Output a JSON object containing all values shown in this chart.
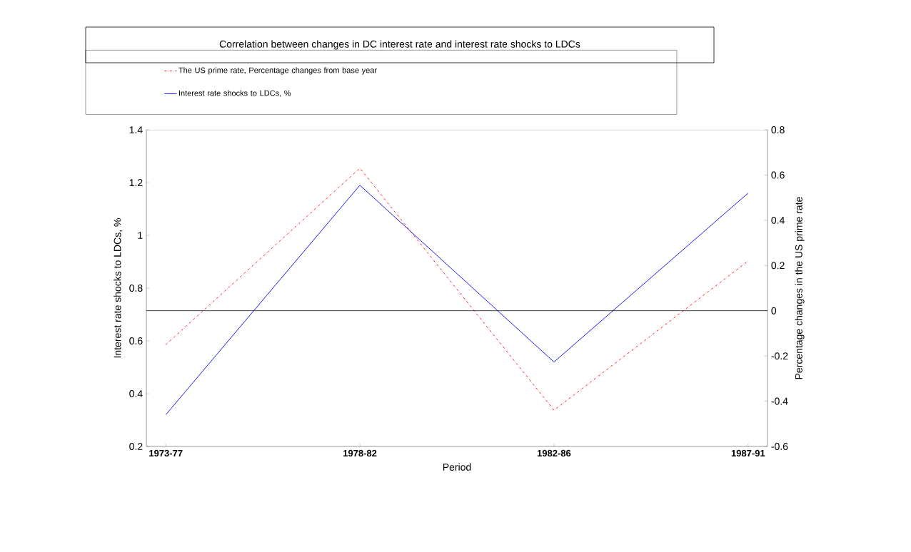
{
  "chart_data": {
    "type": "line",
    "title": "Correlation between changes in DC interest rate and interest rate shocks to LDCs",
    "categories": [
      "1973-77",
      "1978-82",
      "1982-86",
      "1987-91"
    ],
    "series": [
      {
        "name": "The US prime rate, Percentage changes from base year",
        "color": "#ff0000",
        "values": [
          -0.15,
          0.63,
          -0.44,
          0.22
        ],
        "axis": "y2",
        "line_style": "dashed"
      },
      {
        "name": "Interest rate shocks to LDCs, %",
        "color": "#0000ff",
        "values": [
          0.32,
          1.19,
          0.52,
          1.16
        ],
        "line_style": "solid"
      }
    ],
    "xlabel": "Period",
    "ylabel": "Interest rate shocks to LDCs, %",
    "y2label": "Percentage changes in the US prime rate",
    "ylim": [
      0.2,
      1.4
    ],
    "yticks": [
      0.2,
      0.4,
      0.6,
      0.8,
      1,
      1.2,
      1.4
    ],
    "y2lim": [
      -0.6,
      0.8
    ],
    "y2ticks": [
      -0.6,
      -0.4,
      -0.2,
      0,
      0.2,
      0.4,
      0.6,
      0.8
    ],
    "ref_lines": [
      {
        "axis": "y2",
        "value": 0,
        "color": "#000000"
      }
    ],
    "legend": "top left",
    "marker": "none"
  }
}
